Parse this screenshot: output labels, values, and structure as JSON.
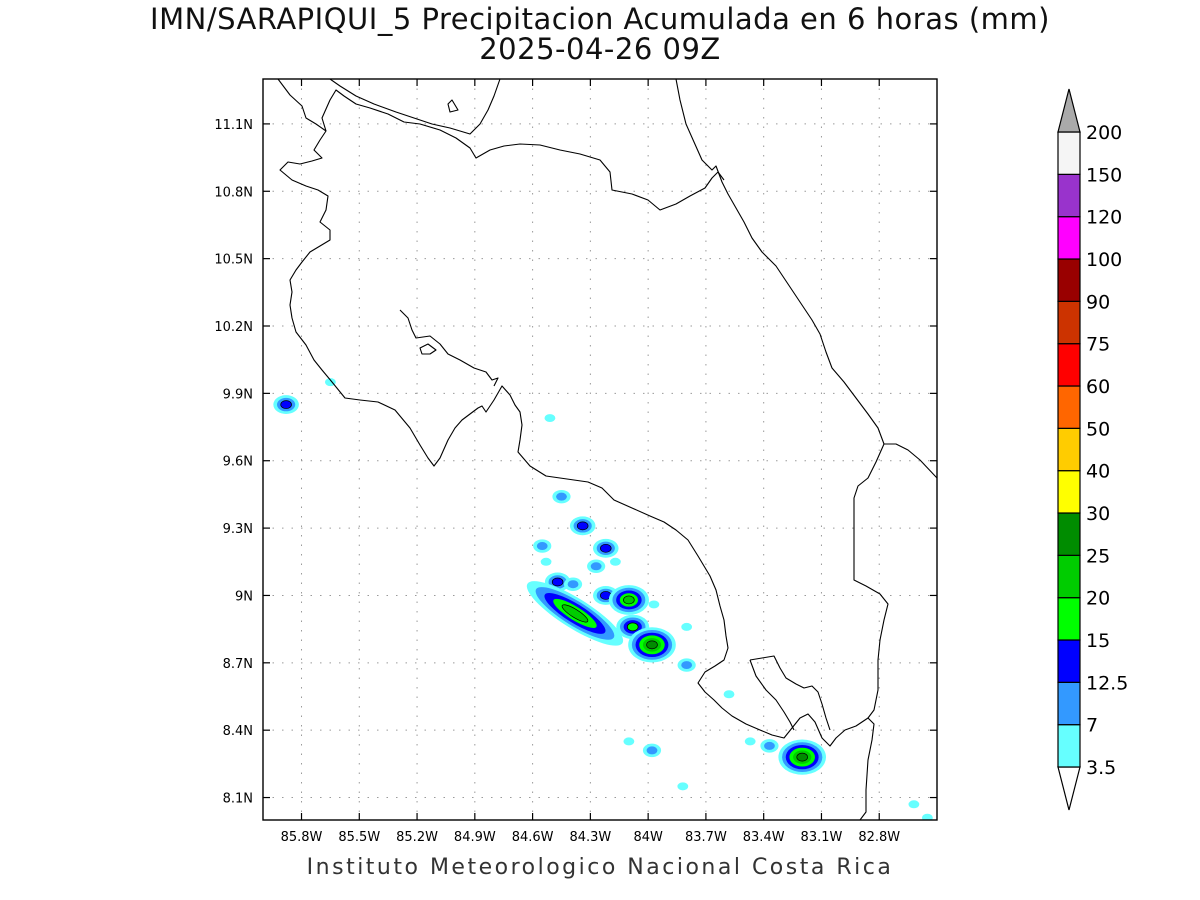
{
  "title": {
    "line1": "IMN/SARAPIQUI_5 Precipitacion Acumulada en 6 horas (mm)",
    "line2": "2025-04-26 09Z"
  },
  "footer": "Instituto Meteorologico Nacional Costa Rica",
  "map": {
    "lon_range": [
      -86.0,
      -82.5
    ],
    "lat_range": [
      8.0,
      11.3
    ],
    "lon_ticks": [
      {
        "value": -85.8,
        "label": "85.8W"
      },
      {
        "value": -85.5,
        "label": "85.5W"
      },
      {
        "value": -85.2,
        "label": "85.2W"
      },
      {
        "value": -84.9,
        "label": "84.9W"
      },
      {
        "value": -84.6,
        "label": "84.6W"
      },
      {
        "value": -84.3,
        "label": "84.3W"
      },
      {
        "value": -84.0,
        "label": "84W"
      },
      {
        "value": -83.7,
        "label": "83.7W"
      },
      {
        "value": -83.4,
        "label": "83.4W"
      },
      {
        "value": -83.1,
        "label": "83.1W"
      },
      {
        "value": -82.8,
        "label": "82.8W"
      }
    ],
    "lat_ticks": [
      {
        "value": 8.1,
        "label": "8.1N"
      },
      {
        "value": 8.4,
        "label": "8.4N"
      },
      {
        "value": 8.7,
        "label": "8.7N"
      },
      {
        "value": 9.0,
        "label": "9N"
      },
      {
        "value": 9.3,
        "label": "9.3N"
      },
      {
        "value": 9.6,
        "label": "9.6N"
      },
      {
        "value": 9.9,
        "label": "9.9N"
      },
      {
        "value": 10.2,
        "label": "10.2N"
      },
      {
        "value": 10.5,
        "label": "10.5N"
      },
      {
        "value": 10.8,
        "label": "10.8N"
      },
      {
        "value": 11.1,
        "label": "11.1N"
      }
    ],
    "grid": true,
    "coastline_color": "#000000"
  },
  "colorbar": {
    "levels": [
      {
        "label": "3.5",
        "color": "#66ffff"
      },
      {
        "label": "7",
        "color": "#3399ff"
      },
      {
        "label": "12.5",
        "color": "#0000ff"
      },
      {
        "label": "15",
        "color": "#00ff00"
      },
      {
        "label": "20",
        "color": "#00cc00"
      },
      {
        "label": "25",
        "color": "#008c00"
      },
      {
        "label": "30",
        "color": "#ffff00"
      },
      {
        "label": "40",
        "color": "#ffcc00"
      },
      {
        "label": "50",
        "color": "#ff6600"
      },
      {
        "label": "60",
        "color": "#ff0000"
      },
      {
        "label": "75",
        "color": "#cc3300"
      },
      {
        "label": "90",
        "color": "#990000"
      },
      {
        "label": "100",
        "color": "#ff00ff"
      },
      {
        "label": "120",
        "color": "#9933cc"
      },
      {
        "label": "150",
        "color": "#f5f5f5"
      },
      {
        "label": "200",
        "color": "#aaaaaa"
      }
    ]
  },
  "precip_cells": [
    {
      "lon": -85.88,
      "lat": 9.85,
      "level": 2
    },
    {
      "lon": -85.65,
      "lat": 9.95,
      "level": 0
    },
    {
      "lon": -84.51,
      "lat": 9.79,
      "level": 0
    },
    {
      "lon": -84.45,
      "lat": 9.44,
      "level": 1
    },
    {
      "lon": -84.34,
      "lat": 9.31,
      "level": 2
    },
    {
      "lon": -84.55,
      "lat": 9.22,
      "level": 1
    },
    {
      "lon": -84.53,
      "lat": 9.15,
      "level": 0
    },
    {
      "lon": -84.47,
      "lat": 9.06,
      "level": 2
    },
    {
      "lon": -84.39,
      "lat": 9.05,
      "level": 1
    },
    {
      "lon": -84.22,
      "lat": 9.21,
      "level": 2
    },
    {
      "lon": -84.27,
      "lat": 9.13,
      "level": 1
    },
    {
      "lon": -84.17,
      "lat": 9.15,
      "level": 0
    },
    {
      "lon": -84.22,
      "lat": 9.0,
      "level": 2
    },
    {
      "lon": -84.38,
      "lat": 8.92,
      "level": 4
    },
    {
      "lon": -84.1,
      "lat": 8.98,
      "level": 4
    },
    {
      "lon": -84.08,
      "lat": 8.86,
      "level": 3
    },
    {
      "lon": -83.97,
      "lat": 8.96,
      "level": 0
    },
    {
      "lon": -83.98,
      "lat": 8.78,
      "level": 5
    },
    {
      "lon": -83.8,
      "lat": 8.86,
      "level": 0
    },
    {
      "lon": -83.8,
      "lat": 8.69,
      "level": 1
    },
    {
      "lon": -83.58,
      "lat": 8.56,
      "level": 0
    },
    {
      "lon": -83.2,
      "lat": 8.28,
      "level": 5
    },
    {
      "lon": -83.37,
      "lat": 8.33,
      "level": 1
    },
    {
      "lon": -83.47,
      "lat": 8.35,
      "level": 0
    },
    {
      "lon": -83.98,
      "lat": 8.31,
      "level": 1
    },
    {
      "lon": -84.1,
      "lat": 8.35,
      "level": 0
    },
    {
      "lon": -83.82,
      "lat": 8.15,
      "level": 0
    },
    {
      "lon": -82.62,
      "lat": 8.07,
      "level": 0
    },
    {
      "lon": -82.55,
      "lat": 8.01,
      "level": 0
    }
  ]
}
